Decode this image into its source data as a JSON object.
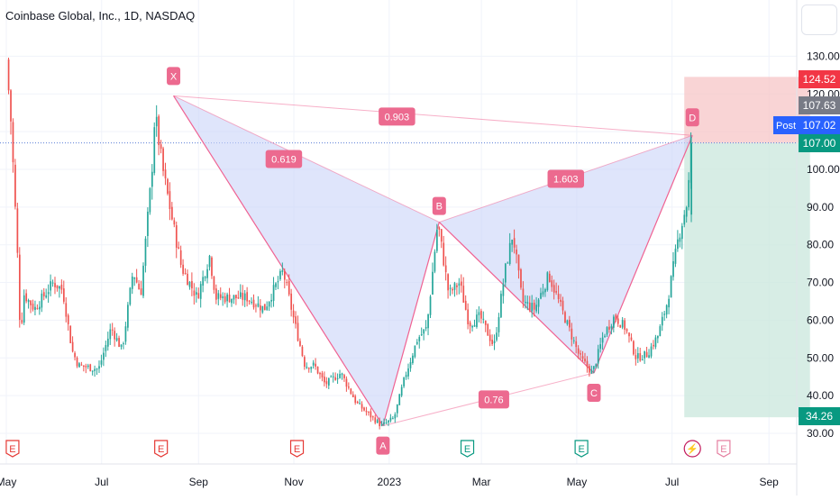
{
  "title": "Coinbase Global, Inc., 1D, NASDAQ",
  "colors": {
    "up": "#26a69a",
    "down": "#ef5350",
    "pattern_fill": "#c9d4f8",
    "pattern_line": "#f06292",
    "label_bg": "#ec6a8f",
    "stop_zone": "#f7c6c7",
    "target_zone": "#cde9df",
    "price_line": "#5b7fd8",
    "grid": "#f0f3fa",
    "axis_text": "#131722"
  },
  "chart_data": {
    "type": "candlestick",
    "title": "Coinbase Global, Inc., 1D, NASDAQ",
    "x_ticks": [
      "May",
      "Jul",
      "Sep",
      "Nov",
      "2023",
      "Mar",
      "May",
      "Jul",
      "Sep"
    ],
    "y_ticks": [
      "30.00",
      "40.00",
      "50.00",
      "60.00",
      "70.00",
      "80.00",
      "90.00",
      "100.00",
      "110.00",
      "120.00",
      "130.00"
    ],
    "ylim": [
      27,
      139
    ],
    "price_scale_labels": [
      {
        "text": "124.52",
        "value": 124.52,
        "color": "#f23645"
      },
      {
        "text": "107.63",
        "value": 107.63,
        "color": "#787b86"
      },
      {
        "text": "107.02",
        "value": 107.02,
        "color": "#2962ff",
        "tag": "Post"
      },
      {
        "text": "107.00",
        "value": 107.0,
        "color": "#089981"
      },
      {
        "text": "34.26",
        "value": 34.26,
        "color": "#089981"
      }
    ],
    "last_price": 107.0,
    "price_path": [
      [
        "2022-05-02",
        129
      ],
      [
        "2022-05-05",
        112
      ],
      [
        "2022-05-09",
        78
      ],
      [
        "2022-05-11",
        55
      ],
      [
        "2022-05-13",
        67
      ],
      [
        "2022-05-20",
        63
      ],
      [
        "2022-06-01",
        70
      ],
      [
        "2022-06-07",
        68
      ],
      [
        "2022-06-13",
        52
      ],
      [
        "2022-06-17",
        48
      ],
      [
        "2022-06-30",
        47
      ],
      [
        "2022-07-08",
        58
      ],
      [
        "2022-07-15",
        52
      ],
      [
        "2022-07-22",
        73
      ],
      [
        "2022-07-27",
        67
      ],
      [
        "2022-08-03",
        99
      ],
      [
        "2022-08-05",
        115
      ],
      [
        "2022-08-10",
        100
      ],
      [
        "2022-08-15",
        89
      ],
      [
        "2022-08-22",
        74
      ],
      [
        "2022-09-01",
        66
      ],
      [
        "2022-09-09",
        77
      ],
      [
        "2022-09-13",
        66
      ],
      [
        "2022-09-22",
        66
      ],
      [
        "2022-10-03",
        66
      ],
      [
        "2022-10-14",
        63
      ],
      [
        "2022-10-26",
        73
      ],
      [
        "2022-11-02",
        60
      ],
      [
        "2022-11-09",
        48
      ],
      [
        "2022-11-15",
        48
      ],
      [
        "2022-11-22",
        43
      ],
      [
        "2022-12-02",
        46
      ],
      [
        "2022-12-12",
        38
      ],
      [
        "2022-12-20",
        35
      ],
      [
        "2022-12-28",
        32
      ],
      [
        "2023-01-05",
        34
      ],
      [
        "2023-01-12",
        45
      ],
      [
        "2023-01-20",
        55
      ],
      [
        "2023-01-26",
        58
      ],
      [
        "2023-02-02",
        86
      ],
      [
        "2023-02-09",
        67
      ],
      [
        "2023-02-16",
        70
      ],
      [
        "2023-02-22",
        59
      ],
      [
        "2023-03-01",
        61
      ],
      [
        "2023-03-10",
        53
      ],
      [
        "2023-03-17",
        73
      ],
      [
        "2023-03-22",
        83
      ],
      [
        "2023-03-28",
        65
      ],
      [
        "2023-04-05",
        63
      ],
      [
        "2023-04-14",
        72
      ],
      [
        "2023-04-24",
        61
      ],
      [
        "2023-05-04",
        50
      ],
      [
        "2023-05-12",
        46
      ],
      [
        "2023-05-19",
        56
      ],
      [
        "2023-05-26",
        61
      ],
      [
        "2023-06-02",
        58
      ],
      [
        "2023-06-09",
        50
      ],
      [
        "2023-06-16",
        51
      ],
      [
        "2023-06-23",
        56
      ],
      [
        "2023-06-29",
        65
      ],
      [
        "2023-07-06",
        82
      ],
      [
        "2023-07-12",
        92
      ],
      [
        "2023-07-14",
        107
      ]
    ],
    "harmonic_pattern": {
      "points": [
        {
          "label": "X",
          "date": "2022-08-16",
          "price": 119.5
        },
        {
          "label": "A",
          "date": "2022-12-28",
          "price": 32
        },
        {
          "label": "B",
          "date": "2023-02-02",
          "price": 86
        },
        {
          "label": "C",
          "date": "2023-05-12",
          "price": 46
        },
        {
          "label": "D",
          "date": "2023-07-14",
          "price": 109
        }
      ],
      "ratios": [
        {
          "text": "0.619",
          "from": "X",
          "to": "B"
        },
        {
          "text": "0.76",
          "from": "A",
          "to": "C"
        },
        {
          "text": "1.603",
          "from": "B",
          "to": "D"
        },
        {
          "text": "0.903",
          "from": "X",
          "to": "D"
        }
      ]
    },
    "position": {
      "entry": 107.0,
      "stop": 124.52,
      "target": 34.26,
      "start_date": "2023-07-14",
      "end_date": "2023-09-14"
    },
    "event_markers": [
      {
        "date": "2022-05-05",
        "glyph": "E",
        "kind": "earnings"
      },
      {
        "date": "2022-08-08",
        "glyph": "E",
        "kind": "earnings"
      },
      {
        "date": "2022-11-03",
        "glyph": "E",
        "kind": "earnings"
      },
      {
        "date": "2023-02-20",
        "glyph": "E",
        "kind": "earnings-up"
      },
      {
        "date": "2023-05-04",
        "glyph": "E",
        "kind": "earnings-up"
      },
      {
        "date": "2023-07-14",
        "glyph": "⚡",
        "kind": "event"
      },
      {
        "date": "2023-08-03",
        "glyph": "E",
        "kind": "earnings-upcoming"
      }
    ]
  }
}
